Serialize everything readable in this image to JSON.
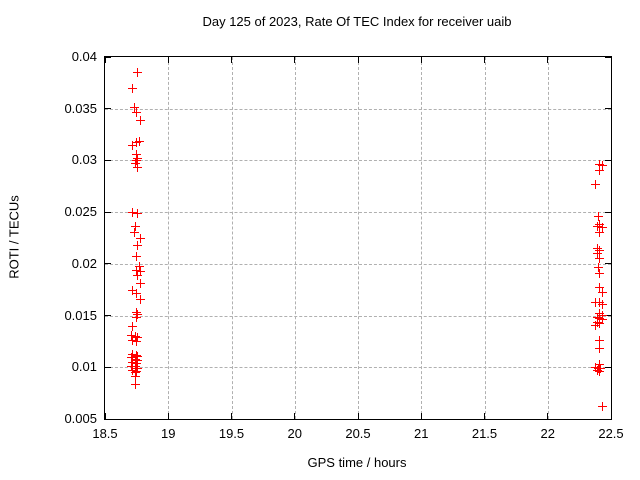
{
  "chart_data": {
    "type": "scatter",
    "title": "Day 125 of 2023, Rate Of TEC Index for receiver uaib",
    "xlabel": "GPS time / hours",
    "ylabel": "ROTI / TECUs",
    "xlim": [
      18.5,
      22.5
    ],
    "ylim": [
      0.005,
      0.04
    ],
    "grid": true,
    "legend": "none",
    "marker": {
      "shape": "plus",
      "color": "#ff0000"
    },
    "axis_color": "#000000",
    "grid_color": "#b0b0b0",
    "xticks": {
      "values": [
        18.5,
        19,
        19.5,
        20,
        20.5,
        21,
        21.5,
        22,
        22.5
      ],
      "labels": [
        "18.5",
        "19",
        "19.5",
        "20",
        "20.5",
        "21",
        "21.5",
        "22",
        "22.5"
      ]
    },
    "yticks": {
      "values": [
        0.005,
        0.01,
        0.015,
        0.02,
        0.025,
        0.03,
        0.035,
        0.04
      ],
      "labels": [
        "0.005",
        "0.01",
        "0.015",
        "0.02",
        "0.025",
        "0.03",
        "0.035",
        "0.04"
      ]
    },
    "series": [
      {
        "name": "roti",
        "points": [
          [
            18.76,
            0.0385
          ],
          [
            18.72,
            0.037
          ],
          [
            18.73,
            0.0351
          ],
          [
            18.75,
            0.0346
          ],
          [
            18.78,
            0.0339
          ],
          [
            18.77,
            0.0318
          ],
          [
            18.75,
            0.0317
          ],
          [
            18.72,
            0.0314
          ],
          [
            18.75,
            0.0306
          ],
          [
            18.76,
            0.0302
          ],
          [
            18.75,
            0.03
          ],
          [
            18.74,
            0.0297
          ],
          [
            18.76,
            0.0293
          ],
          [
            18.72,
            0.025
          ],
          [
            18.76,
            0.0249
          ],
          [
            18.74,
            0.0236
          ],
          [
            18.73,
            0.023
          ],
          [
            18.78,
            0.0225
          ],
          [
            18.76,
            0.0218
          ],
          [
            18.75,
            0.0207
          ],
          [
            18.77,
            0.0197
          ],
          [
            18.75,
            0.0194
          ],
          [
            18.78,
            0.0193
          ],
          [
            18.76,
            0.0189
          ],
          [
            18.78,
            0.0181
          ],
          [
            18.72,
            0.0174
          ],
          [
            18.75,
            0.0171
          ],
          [
            18.78,
            0.0166
          ],
          [
            18.75,
            0.0153
          ],
          [
            18.76,
            0.0151
          ],
          [
            18.75,
            0.0148
          ],
          [
            18.72,
            0.0139
          ],
          [
            18.71,
            0.0131
          ],
          [
            18.74,
            0.013
          ],
          [
            18.76,
            0.0129
          ],
          [
            18.72,
            0.0126
          ],
          [
            18.75,
            0.0125
          ],
          [
            18.72,
            0.0112
          ],
          [
            18.75,
            0.0111
          ],
          [
            18.76,
            0.011
          ],
          [
            18.71,
            0.0109
          ],
          [
            18.74,
            0.0108
          ],
          [
            18.76,
            0.0107
          ],
          [
            18.72,
            0.0105
          ],
          [
            18.75,
            0.0104
          ],
          [
            18.71,
            0.0101
          ],
          [
            18.74,
            0.0101
          ],
          [
            18.76,
            0.0099
          ],
          [
            18.72,
            0.0097
          ],
          [
            18.75,
            0.0096
          ],
          [
            18.74,
            0.0095
          ],
          [
            18.74,
            0.0091
          ],
          [
            18.74,
            0.0083
          ],
          [
            22.41,
            0.0296
          ],
          [
            22.43,
            0.0295
          ],
          [
            22.41,
            0.029
          ],
          [
            22.38,
            0.0277
          ],
          [
            22.4,
            0.0246
          ],
          [
            22.41,
            0.0238
          ],
          [
            22.39,
            0.0236
          ],
          [
            22.43,
            0.0235
          ],
          [
            22.41,
            0.023
          ],
          [
            22.39,
            0.0215
          ],
          [
            22.41,
            0.0213
          ],
          [
            22.39,
            0.021
          ],
          [
            22.41,
            0.0205
          ],
          [
            22.4,
            0.0196
          ],
          [
            22.41,
            0.0191
          ],
          [
            22.41,
            0.0177
          ],
          [
            22.43,
            0.0172
          ],
          [
            22.38,
            0.0163
          ],
          [
            22.41,
            0.0163
          ],
          [
            22.43,
            0.0161
          ],
          [
            22.41,
            0.0152
          ],
          [
            22.43,
            0.015
          ],
          [
            22.39,
            0.0148
          ],
          [
            22.41,
            0.0147
          ],
          [
            22.43,
            0.0146
          ],
          [
            22.39,
            0.0143
          ],
          [
            22.41,
            0.0142
          ],
          [
            22.38,
            0.014
          ],
          [
            22.41,
            0.0126
          ],
          [
            22.41,
            0.0118
          ],
          [
            22.41,
            0.0103
          ],
          [
            22.38,
            0.01
          ],
          [
            22.4,
            0.0099
          ],
          [
            22.42,
            0.0099
          ],
          [
            22.39,
            0.0097
          ],
          [
            22.41,
            0.0096
          ],
          [
            22.43,
            0.0062
          ]
        ]
      }
    ]
  }
}
